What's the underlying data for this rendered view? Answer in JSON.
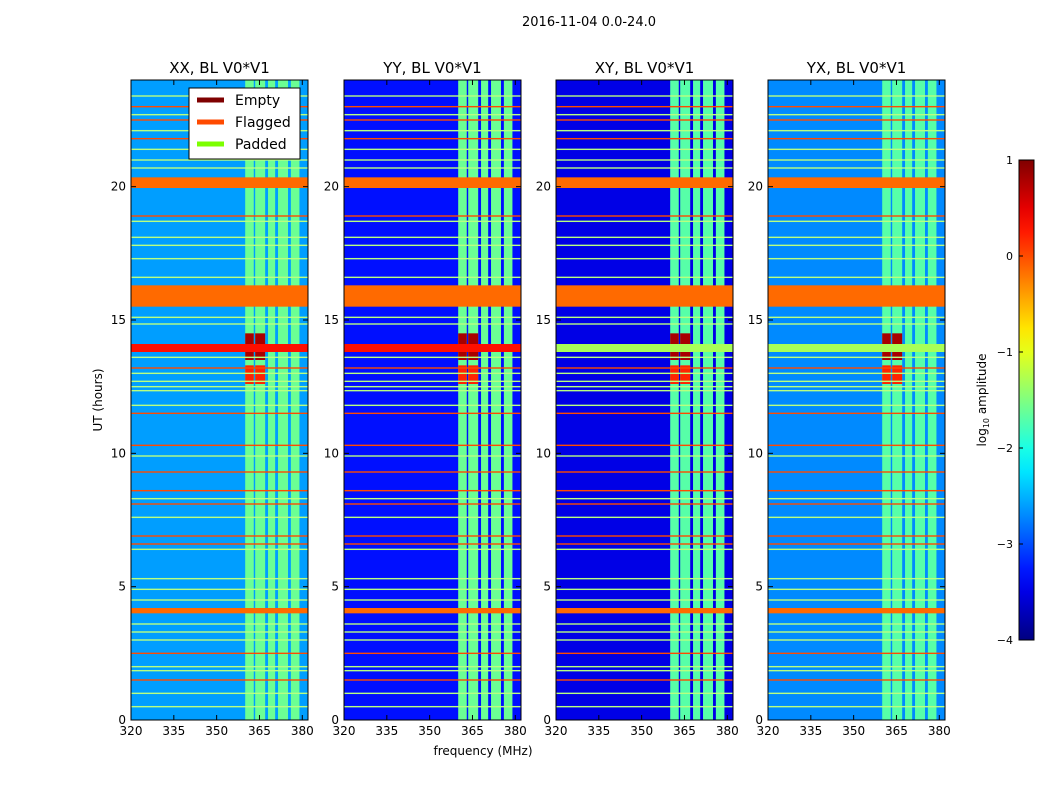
{
  "chart_data": {
    "type": "heatmap",
    "suptitle": "2016-11-04 0.0-24.0",
    "xlabel": "frequency (MHz)",
    "ylabel": "UT (hours)",
    "xlim": [
      320,
      382
    ],
    "ylim": [
      0,
      24
    ],
    "xticks": [
      320,
      335,
      350,
      365,
      380
    ],
    "yticks": [
      0,
      5,
      10,
      15,
      20
    ],
    "colorbar": {
      "label": "log10 amplitude",
      "label_main": "log",
      "label_sub": "10",
      "label_rest": " amplitude",
      "range": [
        -4,
        1
      ],
      "ticks": [
        -4,
        -3,
        -2,
        -1,
        0,
        1
      ],
      "tick_labels": [
        "−4",
        "−3",
        "−2",
        "−1",
        "0",
        "1"
      ]
    },
    "legend": {
      "location": "top-right of first panel",
      "entries": [
        {
          "label": "Empty",
          "color": "#7f0000"
        },
        {
          "label": "Flagged",
          "color": "#ff4a00"
        },
        {
          "label": "Padded",
          "color": "#7cff00"
        }
      ]
    },
    "panels": [
      {
        "title": "XX, BL V0*V1",
        "background": -2.6,
        "cross": false
      },
      {
        "title": "YY, BL V0*V1",
        "background": -3.3,
        "cross": false
      },
      {
        "title": "XY, BL V0*V1",
        "background": -3.5,
        "cross": true
      },
      {
        "title": "YX, BL V0*V1",
        "background": -2.7,
        "cross": true
      }
    ],
    "bright_columns_mhz": [
      [
        360,
        363
      ],
      [
        363.5,
        367
      ],
      [
        368,
        370.5
      ],
      [
        371.5,
        375
      ],
      [
        376,
        379
      ]
    ],
    "empty_band_mhz": [
      [
        360,
        363
      ],
      [
        363.5,
        367
      ]
    ],
    "flagged_bands_hours": [
      [
        19.95,
        20.35
      ],
      [
        15.5,
        16.3
      ],
      [
        4.0,
        4.2
      ]
    ],
    "flag_lines_hours": [
      1.5,
      2.5,
      6.6,
      6.9,
      8.1,
      8.6,
      9.3,
      10.3,
      11.5,
      13.2,
      18.9,
      21.8,
      22.5,
      23.0
    ],
    "padded_lines_hours": [
      0.5,
      1.0,
      1.85,
      2.0,
      3.0,
      3.3,
      3.6,
      4.5,
      4.9,
      5.3,
      6.4,
      7.6,
      8.3,
      9.9,
      11.8,
      12.35,
      12.5,
      12.7,
      13.0,
      13.6,
      14.85,
      15.1,
      16.6,
      17.3,
      17.8,
      18.1,
      18.7,
      20.7,
      21.0,
      21.4,
      22.1,
      22.7,
      23.4
    ]
  }
}
